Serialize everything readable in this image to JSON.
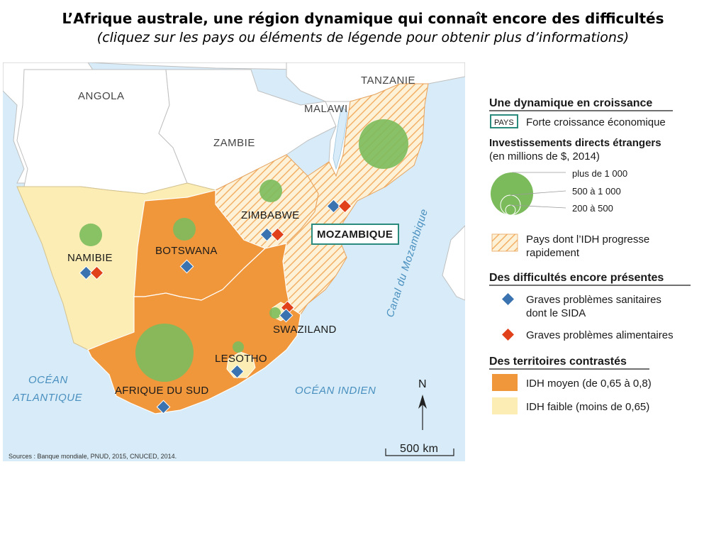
{
  "header": {
    "title": "L’Afrique australe, une région dynamique qui connaît encore des difficultés",
    "subtitle": "(cliquez sur les pays ou éléments de légende pour obtenir plus d’informations)"
  },
  "colors": {
    "sea": "#d7ecf8",
    "land_other": "#ffffff",
    "idh_moyen": "#f0973c",
    "idh_faible": "#fcedb4",
    "idh_progress_hatch": "#f3b066",
    "investment": "#7cbb5c",
    "sanitary": "#3b73b0",
    "food": "#e0411b",
    "strong_growth_border": "#2a8b7c"
  },
  "map": {
    "countries": {
      "angola": "ANGOLA",
      "zambie": "ZAMBIE",
      "malawi": "MALAWI",
      "tanzanie": "TANZANIE",
      "zimbabwe": "ZIMBABWE",
      "mozambique": "MOZAMBIQUE",
      "namibie": "NAMIBIE",
      "botswana": "BOTSWANA",
      "afrique_du_sud": "AFRIQUE DU SUD",
      "lesotho": "LESOTHO",
      "swaziland": "SWAZILAND"
    },
    "seas": {
      "atlantique_1": "OCÉAN",
      "atlantique_2": "ATLANTIQUE",
      "indien": "OCÉAN INDIEN",
      "canal": "Canal du Mozambique"
    },
    "north": "N",
    "scale": "500 km",
    "source": "Sources : Banque mondiale, PNUD, 2015, CNUCED, 2014."
  },
  "legend": {
    "section1": "Une dynamique en croissance",
    "pays_box": "PAYS",
    "strong_growth": "Forte croissance économique",
    "ide_title": "Investissements directs étrangers",
    "ide_unit": "(en millions de $, 2014)",
    "ide_levels": [
      "plus de 1 000",
      "500 à 1 000",
      "200 à 500"
    ],
    "idh_progress_1": "Pays dont l’IDH progresse",
    "idh_progress_2": "rapidement",
    "section2": "Des difficultés encore présentes",
    "sanitary_1": "Graves problèmes sanitaires",
    "sanitary_2": "dont le SIDA",
    "food": "Graves problèmes alimentaires",
    "section3": "Des territoires contrastés",
    "idh_moyen": "IDH moyen (de 0,65 à 0,8)",
    "idh_faible": "IDH faible (moins de 0,65)"
  }
}
